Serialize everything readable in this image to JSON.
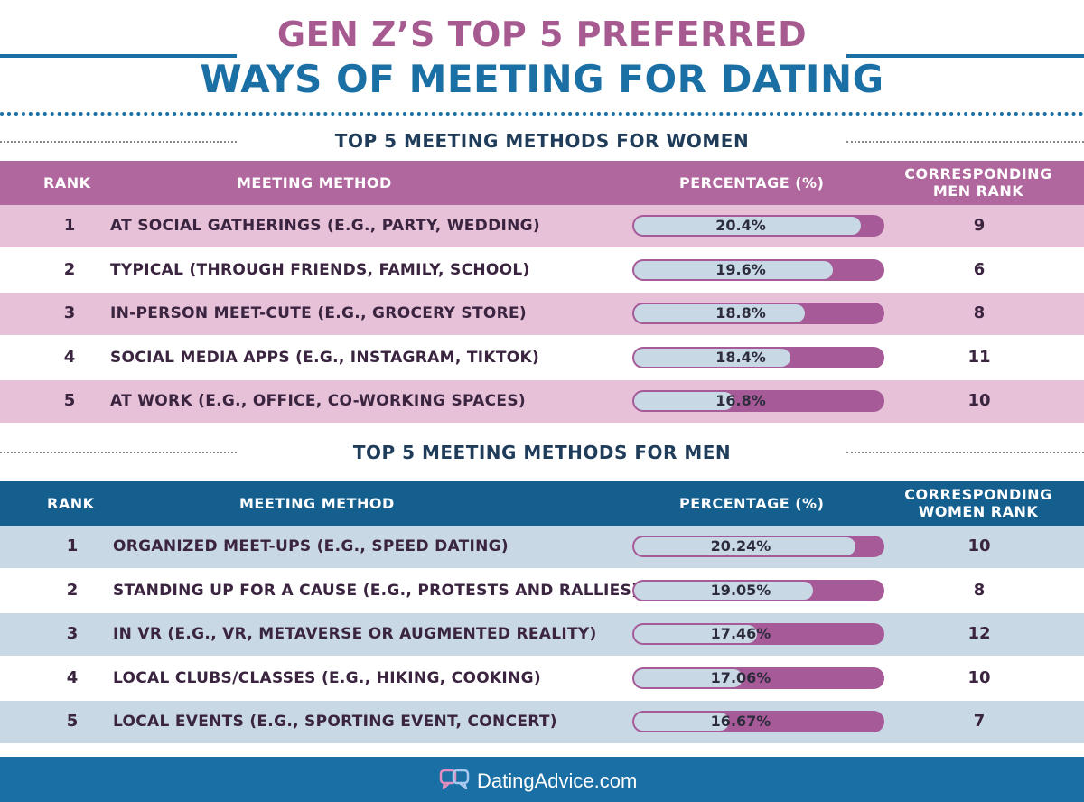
{
  "title_line1": "GEN Z’S TOP 5 PREFERRED",
  "title_line2": "WAYS OF MEETING FOR DATING",
  "colors": {
    "pink": "#a65a90",
    "blue": "#1a6fa5",
    "pink_row": "#e6c1d8",
    "blue_row": "#c8d8e4"
  },
  "women_table": {
    "title": "TOP 5 MEETING METHODS FOR WOMEN",
    "headers": {
      "rank": "RANK",
      "method": "MEETING METHOD",
      "percentage": "PERCENTAGE (%)",
      "corresponding_l1": "CORRESPONDING",
      "corresponding_l2": "MEN RANK"
    },
    "rows": [
      {
        "rank": "1",
        "method": "AT SOCIAL GATHERINGS (E.G., PARTY, WEDDING)",
        "pct_label": "20.4%",
        "corr": "9"
      },
      {
        "rank": "2",
        "method": "TYPICAL (THROUGH FRIENDS, FAMILY, SCHOOL)",
        "pct_label": "19.6%",
        "corr": "6"
      },
      {
        "rank": "3",
        "method": "IN-PERSON MEET-CUTE (E.G., GROCERY STORE)",
        "pct_label": "18.8%",
        "corr": "8"
      },
      {
        "rank": "4",
        "method": "SOCIAL MEDIA APPS (E.G., INSTAGRAM, TIKTOK)",
        "pct_label": "18.4%",
        "corr": "11"
      },
      {
        "rank": "5",
        "method": "AT WORK (E.G., OFFICE, CO-WORKING SPACES)",
        "pct_label": "16.8%",
        "corr": "10"
      }
    ]
  },
  "men_table": {
    "title": "TOP 5 MEETING METHODS FOR MEN",
    "headers": {
      "rank": "RANK",
      "method": "MEETING METHOD",
      "percentage": "PERCENTAGE (%)",
      "corresponding_l1": "CORRESPONDING",
      "corresponding_l2": "WOMEN RANK"
    },
    "rows": [
      {
        "rank": "1",
        "method": "ORGANIZED MEET-UPS (E.G., SPEED DATING)",
        "pct_label": "20.24%",
        "corr": "10"
      },
      {
        "rank": "2",
        "method": "STANDING UP FOR A CAUSE (E.G., PROTESTS AND RALLIES)",
        "pct_label": "19.05%",
        "corr": "8"
      },
      {
        "rank": "3",
        "method": "IN VR (E.G., VR, METAVERSE OR AUGMENTED REALITY)",
        "pct_label": "17.46%",
        "corr": "12"
      },
      {
        "rank": "4",
        "method": "LOCAL CLUBS/CLASSES (E.G., HIKING, COOKING)",
        "pct_label": "17.06%",
        "corr": "10"
      },
      {
        "rank": "5",
        "method": "LOCAL EVENTS (E.G., SPORTING EVENT, CONCERT)",
        "pct_label": "16.67%",
        "corr": "7"
      }
    ]
  },
  "chart_data": [
    {
      "type": "table",
      "title": "TOP 5 MEETING METHODS FOR WOMEN",
      "columns": [
        "RANK",
        "MEETING METHOD",
        "PERCENTAGE (%)",
        "CORRESPONDING MEN RANK"
      ],
      "categories": [
        "AT SOCIAL GATHERINGS (E.G., PARTY, WEDDING)",
        "TYPICAL (THROUGH FRIENDS, FAMILY, SCHOOL)",
        "IN-PERSON MEET-CUTE (E.G., GROCERY STORE)",
        "SOCIAL MEDIA APPS (E.G., INSTAGRAM, TIKTOK)",
        "AT WORK (E.G., OFFICE, CO-WORKING SPACES)"
      ],
      "values": [
        20.4,
        19.6,
        18.8,
        18.4,
        16.8
      ],
      "ranks": [
        1,
        2,
        3,
        4,
        5
      ],
      "corresponding_ranks": [
        9,
        6,
        8,
        11,
        10
      ]
    },
    {
      "type": "table",
      "title": "TOP 5 MEETING METHODS FOR MEN",
      "columns": [
        "RANK",
        "MEETING METHOD",
        "PERCENTAGE (%)",
        "CORRESPONDING WOMEN RANK"
      ],
      "categories": [
        "ORGANIZED MEET-UPS (E.G., SPEED DATING)",
        "STANDING UP FOR A CAUSE (E.G., PROTESTS AND RALLIES)",
        "IN VR (E.G., VR, METAVERSE OR AUGMENTED REALITY)",
        "LOCAL CLUBS/CLASSES (E.G., HIKING, COOKING)",
        "LOCAL EVENTS (E.G., SPORTING EVENT, CONCERT)"
      ],
      "values": [
        20.24,
        19.05,
        17.46,
        17.06,
        16.67
      ],
      "ranks": [
        1,
        2,
        3,
        4,
        5
      ],
      "corresponding_ranks": [
        10,
        8,
        12,
        10,
        7
      ]
    }
  ],
  "footer": {
    "brand": "DatingAdvice.com"
  }
}
